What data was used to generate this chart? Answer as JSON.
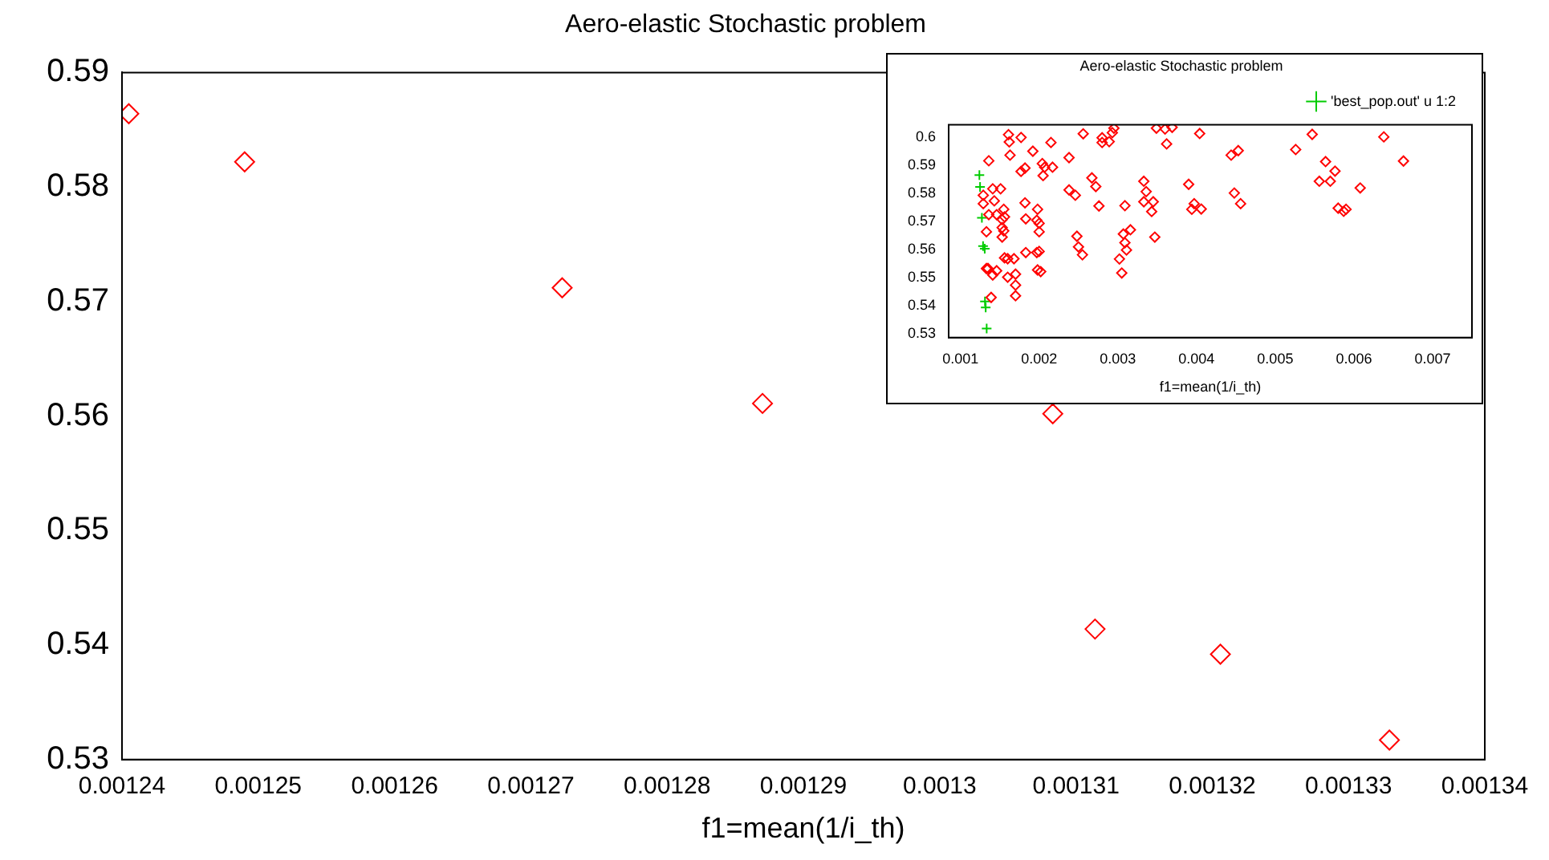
{
  "chart_data": [
    {
      "type": "scatter",
      "title": "Aero-elastic Stochastic problem",
      "xlabel": "f1=mean(1/i_th)",
      "marker": "diamond",
      "series": [
        {
          "color": "#ff0000",
          "x": [
            0.0012405,
            0.001249,
            0.0012723,
            0.001287,
            0.0013083,
            0.0013114,
            0.0013206,
            0.001333
          ],
          "values": [
            0.5864,
            0.5822,
            0.5712,
            0.5611,
            0.5602,
            0.5414,
            0.5392,
            0.5317
          ]
        }
      ],
      "xlim": [
        0.00124,
        0.00134
      ],
      "xticks": [
        0.00124,
        0.00125,
        0.00126,
        0.00127,
        0.00128,
        0.00129,
        0.0013,
        0.00131,
        0.00132,
        0.00133,
        0.00134
      ],
      "ylim": [
        0.53,
        0.59
      ],
      "yticks": [
        0.53,
        0.54,
        0.55,
        0.56,
        0.57,
        0.58,
        0.59
      ]
    },
    {
      "type": "scatter",
      "title": "Aero-elastic Stochastic problem",
      "xlabel": "f1=mean(1/i_th)",
      "legend": "top right",
      "series": [
        {
          "color": "#ff0000",
          "marker": "diamond",
          "x": [
            0.00161,
            0.00162,
            0.00177,
            0.00163,
            0.00192,
            0.00215,
            0.00136,
            0.00256,
            0.0028,
            0.0028,
            0.00289,
            0.00293,
            0.00295,
            0.00349,
            0.0036,
            0.00369,
            0.00362,
            0.00404,
            0.00547,
            0.00638,
            0.00526,
            0.00444,
            0.00453,
            0.00564,
            0.00576,
            0.00663,
            0.00177,
            0.00182,
            0.00204,
            0.00207,
            0.00217,
            0.00205,
            0.00238,
            0.00267,
            0.00272,
            0.00238,
            0.00246,
            0.00276,
            0.00309,
            0.00333,
            0.00336,
            0.00333,
            0.00345,
            0.00343,
            0.0039,
            0.00397,
            0.00394,
            0.00406,
            0.00448,
            0.00456,
            0.00556,
            0.0057,
            0.00608,
            0.0058,
            0.0059,
            0.00587,
            0.00141,
            0.00151,
            0.00129,
            0.00143,
            0.00155,
            0.00182,
            0.00198,
            0.00146,
            0.00156,
            0.00153,
            0.00183,
            0.00197,
            0.002,
            0.00153,
            0.00155,
            0.00153,
            0.002,
            0.00248,
            0.00307,
            0.00316,
            0.00309,
            0.00311,
            0.00347,
            0.0025,
            0.00255,
            0.00302,
            0.00305,
            0.00183,
            0.00197,
            0.002,
            0.0016,
            0.00168,
            0.00156,
            0.00146,
            0.00141,
            0.0016,
            0.0017,
            0.00135,
            0.0017,
            0.0017,
            0.00139,
            0.00198,
            0.00202,
            0.00129,
            0.00136,
            0.00133,
            0.00133
          ],
          "values": [
            0.6008,
            0.5982,
            0.5998,
            0.5935,
            0.5949,
            0.598,
            0.5915,
            0.6011,
            0.5997,
            0.598,
            0.5983,
            0.6015,
            0.6031,
            0.6031,
            0.6028,
            0.6034,
            0.5975,
            0.6012,
            0.6009,
            0.6,
            0.5955,
            0.5935,
            0.5951,
            0.5912,
            0.5878,
            0.5914,
            0.5877,
            0.5889,
            0.5905,
            0.5892,
            0.5892,
            0.5862,
            0.5926,
            0.5854,
            0.5823,
            0.5811,
            0.5792,
            0.5754,
            0.5755,
            0.5842,
            0.5805,
            0.5769,
            0.5769,
            0.5734,
            0.5831,
            0.5762,
            0.5742,
            0.5743,
            0.58,
            0.5762,
            0.5842,
            0.5842,
            0.5818,
            0.5746,
            0.5742,
            0.5735,
            0.5815,
            0.5815,
            0.5762,
            0.5772,
            0.5742,
            0.5765,
            0.5742,
            0.5723,
            0.5715,
            0.5705,
            0.5708,
            0.5703,
            0.5692,
            0.5677,
            0.5665,
            0.5643,
            0.5662,
            0.5646,
            0.5654,
            0.5669,
            0.5623,
            0.5597,
            0.5643,
            0.5608,
            0.558,
            0.5565,
            0.5515,
            0.5588,
            0.5588,
            0.5592,
            0.5566,
            0.5566,
            0.5569,
            0.5523,
            0.5508,
            0.55,
            0.5511,
            0.5531,
            0.5472,
            0.5434,
            0.5428,
            0.5526,
            0.552,
            0.5792,
            0.5723,
            0.5662,
            0.5531
          ]
        },
        {
          "name": "'best_pop.out' u 1:2",
          "color": "#00cc00",
          "marker": "cross",
          "x": [
            0.0012405,
            0.001249,
            0.0012723,
            0.001287,
            0.0013083,
            0.0013114,
            0.0013206,
            0.001333
          ],
          "values": [
            0.5864,
            0.5822,
            0.5712,
            0.5611,
            0.5602,
            0.5414,
            0.5392,
            0.5317
          ]
        }
      ],
      "xlim": [
        0.00085,
        0.0075
      ],
      "xticks": [
        0.001,
        0.002,
        0.003,
        0.004,
        0.005,
        0.006,
        0.007
      ],
      "ylim": [
        0.5285,
        0.6043
      ],
      "yticks": [
        0.53,
        0.54,
        0.55,
        0.56,
        0.57,
        0.58,
        0.59,
        0.6
      ]
    }
  ]
}
